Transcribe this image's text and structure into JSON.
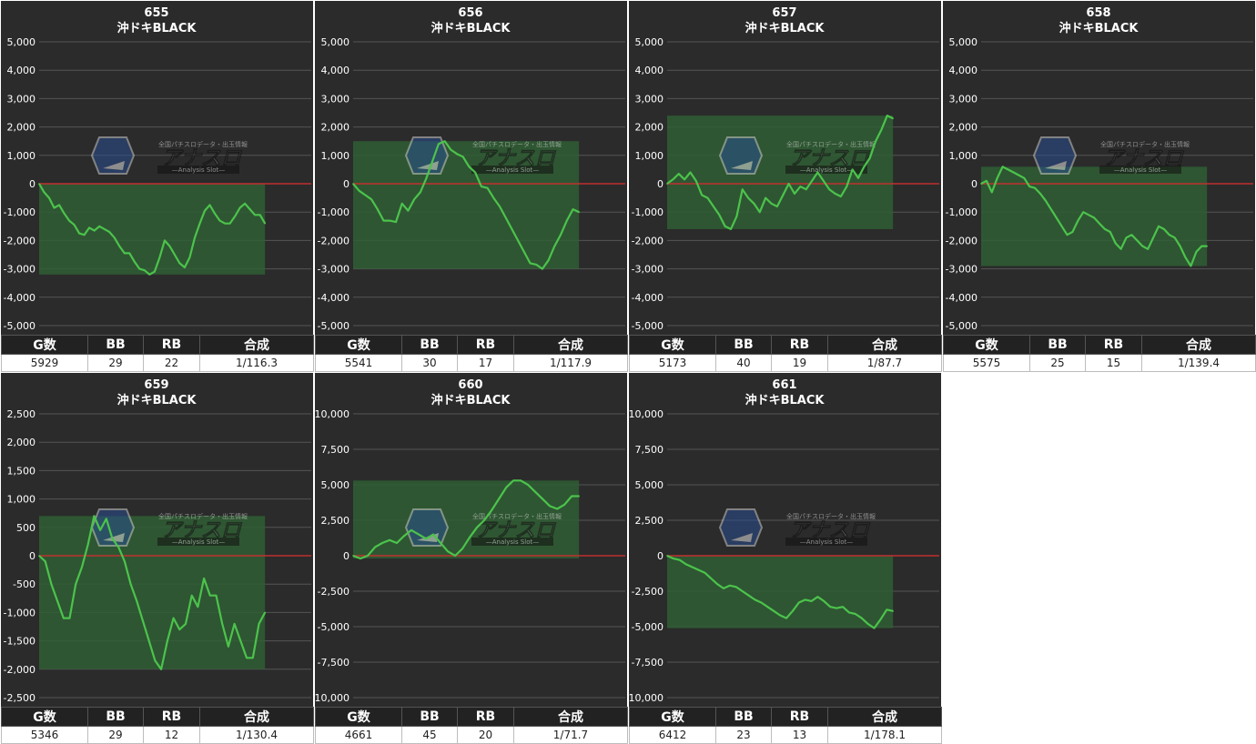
{
  "colors": {
    "background": "#2b2b2b",
    "grid": "#555555",
    "zero_line": "#c0302f",
    "series_line": "#4cc34c",
    "area_fill": "#2f5e34"
  },
  "watermark": {
    "logo_text": "アナスロ",
    "tagline": "全国パチスロデータ・出玉情報",
    "sub": "Analysis Slot"
  },
  "panels": [
    {
      "machine_no": "655",
      "machine_name": "沖ドキBLACK",
      "headers": [
        "G数",
        "BB",
        "RB",
        "合成"
      ],
      "values": [
        "5929",
        "29",
        "22",
        "1/116.3"
      ],
      "yticks": [
        "5,000",
        "4,000",
        "3,000",
        "2,000",
        "1,000",
        "0",
        "-1,000",
        "-2,000",
        "-3,000",
        "-4,000",
        "-5,000"
      ]
    },
    {
      "machine_no": "656",
      "machine_name": "沖ドキBLACK",
      "headers": [
        "G数",
        "BB",
        "RB",
        "合成"
      ],
      "values": [
        "5541",
        "30",
        "17",
        "1/117.9"
      ],
      "yticks": [
        "5,000",
        "4,000",
        "3,000",
        "2,000",
        "1,000",
        "0",
        "-1,000",
        "-2,000",
        "-3,000",
        "-4,000",
        "-5,000"
      ]
    },
    {
      "machine_no": "657",
      "machine_name": "沖ドキBLACK",
      "headers": [
        "G数",
        "BB",
        "RB",
        "合成"
      ],
      "values": [
        "5173",
        "40",
        "19",
        "1/87.7"
      ],
      "yticks": [
        "5,000",
        "4,000",
        "3,000",
        "2,000",
        "1,000",
        "0",
        "-1,000",
        "-2,000",
        "-3,000",
        "-4,000",
        "-5,000"
      ]
    },
    {
      "machine_no": "658",
      "machine_name": "沖ドキBLACK",
      "headers": [
        "G数",
        "BB",
        "RB",
        "合成"
      ],
      "values": [
        "5575",
        "25",
        "15",
        "1/139.4"
      ],
      "yticks": [
        "5,000",
        "4,000",
        "3,000",
        "2,000",
        "1,000",
        "0",
        "-1,000",
        "-2,000",
        "-3,000",
        "-4,000",
        "-5,000"
      ]
    },
    {
      "machine_no": "659",
      "machine_name": "沖ドキBLACK",
      "headers": [
        "G数",
        "BB",
        "RB",
        "合成"
      ],
      "values": [
        "5346",
        "29",
        "12",
        "1/130.4"
      ],
      "yticks": [
        "2,500",
        "2,000",
        "1,500",
        "1,000",
        "500",
        "0",
        "-500",
        "-1,000",
        "-1,500",
        "-2,000",
        "-2,500"
      ]
    },
    {
      "machine_no": "660",
      "machine_name": "沖ドキBLACK",
      "headers": [
        "G数",
        "BB",
        "RB",
        "合成"
      ],
      "values": [
        "4661",
        "45",
        "20",
        "1/71.7"
      ],
      "yticks": [
        "10,000",
        "7,500",
        "5,000",
        "2,500",
        "0",
        "-2,500",
        "-5,000",
        "-7,500",
        "-10,000"
      ]
    },
    {
      "machine_no": "661",
      "machine_name": "沖ドキBLACK",
      "headers": [
        "G数",
        "BB",
        "RB",
        "合成"
      ],
      "values": [
        "6412",
        "23",
        "13",
        "1/178.1"
      ],
      "yticks": [
        "10,000",
        "7,500",
        "5,000",
        "2,500",
        "0",
        "-2,500",
        "-5,000",
        "-7,500",
        "-10,000"
      ]
    }
  ],
  "chart_data": [
    {
      "type": "area",
      "title": "655 沖ドキBLACK",
      "ylim": [
        -5000,
        5000
      ],
      "grid": true,
      "series": [
        {
          "values": [
            0,
            -300,
            -500,
            -850,
            -750,
            -1050,
            -1300,
            -1450,
            -1750,
            -1800,
            -1550,
            -1650,
            -1500,
            -1600,
            -1700,
            -1900,
            -2200,
            -2450,
            -2450,
            -2750,
            -3000,
            -3050,
            -3200,
            -3100,
            -2600,
            -2000,
            -2200,
            -2500,
            -2800,
            -2950,
            -2600,
            -1900,
            -1400,
            -950,
            -750,
            -1050,
            -1300,
            -1400,
            -1400,
            -1150,
            -850,
            -700,
            -900,
            -1100,
            -1100,
            -1400
          ]
        }
      ]
    },
    {
      "type": "area",
      "title": "656 沖ドキBLACK",
      "ylim": [
        -5000,
        5000
      ],
      "grid": true,
      "series": [
        {
          "values": [
            0,
            -250,
            -400,
            -550,
            -900,
            -1300,
            -1300,
            -1350,
            -700,
            -950,
            -550,
            -300,
            200,
            800,
            1400,
            1500,
            1200,
            1050,
            950,
            600,
            400,
            -100,
            -150,
            -500,
            -800,
            -1200,
            -1600,
            -2000,
            -2400,
            -2800,
            -2850,
            -3000,
            -2700,
            -2200,
            -1800,
            -1300,
            -900,
            -1000
          ]
        }
      ]
    },
    {
      "type": "area",
      "title": "657 沖ドキBLACK",
      "ylim": [
        -5000,
        5000
      ],
      "grid": true,
      "series": [
        {
          "values": [
            0,
            150,
            350,
            150,
            400,
            100,
            -400,
            -500,
            -800,
            -1100,
            -1500,
            -1600,
            -1150,
            -200,
            -500,
            -700,
            -1000,
            -500,
            -700,
            -800,
            -400,
            0,
            -350,
            -100,
            -200,
            100,
            400,
            100,
            -200,
            -350,
            -450,
            -100,
            500,
            200,
            600,
            900,
            1500,
            1900,
            2400,
            2300
          ]
        }
      ]
    },
    {
      "type": "area",
      "title": "658 沖ドキBLACK",
      "ylim": [
        -5000,
        5000
      ],
      "grid": true,
      "series": [
        {
          "values": [
            0,
            100,
            -300,
            200,
            600,
            500,
            400,
            300,
            200,
            -100,
            -150,
            -350,
            -600,
            -900,
            -1200,
            -1500,
            -1800,
            -1700,
            -1300,
            -1000,
            -1100,
            -1200,
            -1400,
            -1600,
            -1700,
            -2100,
            -2300,
            -1900,
            -1800,
            -2000,
            -2200,
            -2300,
            -1900,
            -1500,
            -1600,
            -1800,
            -1900,
            -2200,
            -2600,
            -2900,
            -2400,
            -2200,
            -2200
          ]
        }
      ]
    },
    {
      "type": "area",
      "title": "659 沖ドキBLACK",
      "ylim": [
        -2500,
        2500
      ],
      "grid": true,
      "series": [
        {
          "values": [
            0,
            -100,
            -500,
            -800,
            -1100,
            -1100,
            -500,
            -200,
            200,
            700,
            450,
            650,
            300,
            150,
            -100,
            -500,
            -800,
            -1150,
            -1500,
            -1850,
            -2000,
            -1500,
            -1100,
            -1300,
            -1200,
            -700,
            -900,
            -400,
            -700,
            -700,
            -1200,
            -1600,
            -1200,
            -1500,
            -1800,
            -1800,
            -1200,
            -1000
          ]
        }
      ]
    },
    {
      "type": "area",
      "title": "660 沖ドキBLACK",
      "ylim": [
        -10000,
        10000
      ],
      "grid": true,
      "series": [
        {
          "values": [
            0,
            -200,
            0,
            600,
            900,
            1100,
            900,
            1400,
            1800,
            1500,
            1200,
            1500,
            900,
            300,
            0,
            500,
            1300,
            2000,
            2500,
            3200,
            4000,
            4800,
            5300,
            5300,
            5000,
            4500,
            4000,
            3500,
            3300,
            3600,
            4200,
            4200
          ]
        }
      ]
    },
    {
      "type": "area",
      "title": "661 沖ドキBLACK",
      "ylim": [
        -10000,
        10000
      ],
      "grid": true,
      "series": [
        {
          "values": [
            0,
            -200,
            -300,
            -600,
            -800,
            -1000,
            -1200,
            -1600,
            -2000,
            -2300,
            -2100,
            -2200,
            -2500,
            -2800,
            -3100,
            -3300,
            -3600,
            -3900,
            -4200,
            -4400,
            -3900,
            -3300,
            -3100,
            -3200,
            -2900,
            -3200,
            -3600,
            -3700,
            -3600,
            -4000,
            -4100,
            -4400,
            -4800,
            -5100,
            -4500,
            -3800,
            -3900
          ]
        }
      ]
    }
  ]
}
